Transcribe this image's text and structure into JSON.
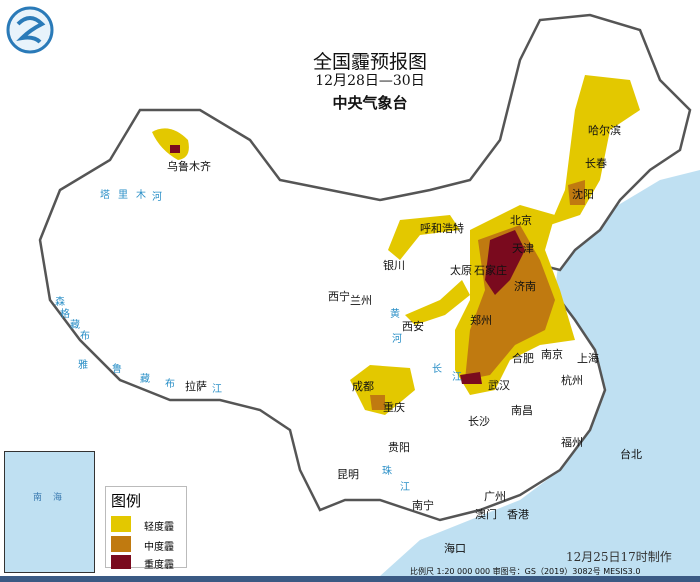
{
  "header": {
    "title": "全国霾预报图",
    "date_range": "12月28日—30日",
    "issuer": "中央气象台"
  },
  "logo": {
    "icon": "cma-logo-icon"
  },
  "legend": {
    "title": "图例",
    "items": [
      {
        "label": "轻度霾",
        "color": "#e3c800"
      },
      {
        "label": "中度霾",
        "color": "#c07a10"
      },
      {
        "label": "重度霾",
        "color": "#7a0a1e"
      }
    ]
  },
  "cities": [
    "乌鲁木齐",
    "哈尔滨",
    "长春",
    "沈阳",
    "北京",
    "天津",
    "呼和浩特",
    "石家庄",
    "太原",
    "济南",
    "银川",
    "西宁",
    "兰州",
    "西安",
    "郑州",
    "合肥",
    "南京",
    "上海",
    "武汉",
    "杭州",
    "成都",
    "重庆",
    "长沙",
    "南昌",
    "贵阳",
    "福州",
    "台北",
    "昆明",
    "南宁",
    "广州",
    "澳门",
    "香港",
    "海口",
    "拉萨"
  ],
  "rivers": [
    "塔",
    "里",
    "木",
    "河",
    "雅",
    "鲁",
    "藏",
    "布",
    "江",
    "黄",
    "河",
    "长",
    "江",
    "珠",
    "江",
    "森",
    "格",
    "藏",
    "布"
  ],
  "inset": {
    "labels": [
      "南",
      "海"
    ]
  },
  "footer": {
    "made_at": "12月25日17时制作",
    "scale_info": "比例尺 1:20 000 000  审图号：GS（2019）3082号 MESIS3.0"
  },
  "colors": {
    "sea": "#bfe0f2",
    "land": "#ffffff",
    "border": "#555555"
  }
}
